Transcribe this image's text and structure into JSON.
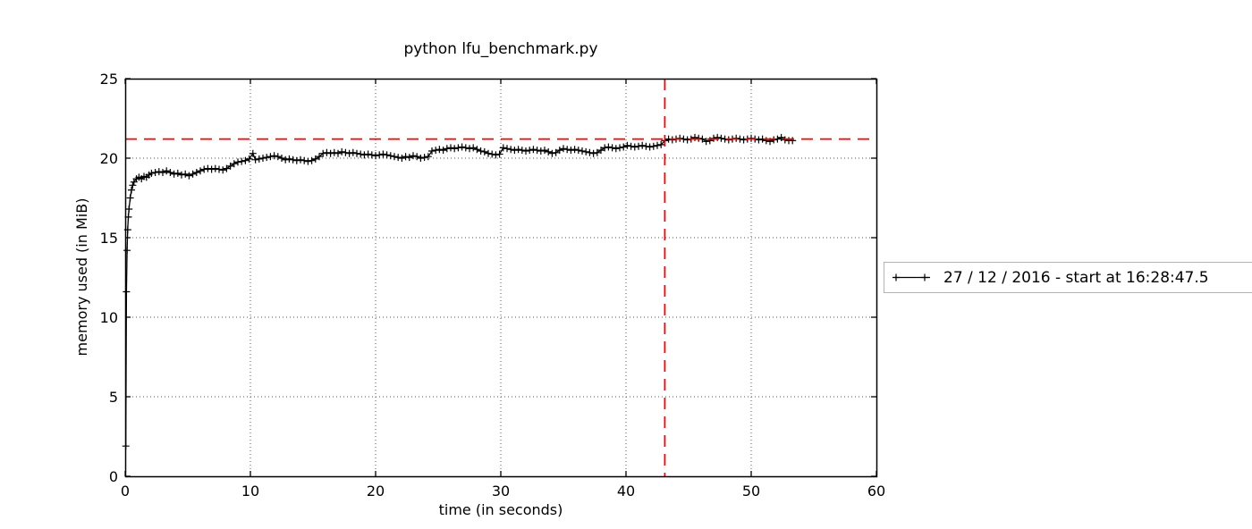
{
  "title": "python lfu_benchmark.py",
  "legend": {
    "label": "27 / 12 / 2016 - start at 16:28:47.5",
    "marker": "plus-line"
  },
  "colors": {
    "series": "#000000",
    "annotation": "#ff0000",
    "grid": "#555555",
    "legend_border": "#b3b3b3",
    "background": "#ffffff"
  },
  "chart_data": {
    "type": "line",
    "title": "python lfu_benchmark.py",
    "xlabel": "time (in seconds)",
    "ylabel": "memory used (in MiB)",
    "xlim": [
      0,
      60
    ],
    "ylim": [
      0,
      25
    ],
    "xticks": [
      0,
      10,
      20,
      30,
      40,
      50,
      60
    ],
    "yticks": [
      0,
      5,
      10,
      15,
      20,
      25
    ],
    "grid": true,
    "grid_style": "dotted",
    "legend_position": "outside-right",
    "marker": "+",
    "annotations": {
      "hline": 21.2,
      "vline": 43.1
    },
    "series": [
      {
        "name": "27 / 12 / 2016 - start at 16:28:47.5",
        "points": [
          [
            0.05,
            1.9
          ],
          [
            0.1,
            11.6
          ],
          [
            0.15,
            14.2
          ],
          [
            0.2,
            15.5
          ],
          [
            0.25,
            16.3
          ],
          [
            0.3,
            16.8
          ],
          [
            0.4,
            17.5
          ],
          [
            0.5,
            18.0
          ],
          [
            0.6,
            18.3
          ],
          [
            0.7,
            18.5
          ],
          [
            0.9,
            18.7
          ],
          [
            1.1,
            18.8
          ],
          [
            1.3,
            18.7
          ],
          [
            1.5,
            18.85
          ],
          [
            1.7,
            18.8
          ],
          [
            1.9,
            18.95
          ],
          [
            2.1,
            19.05
          ],
          [
            2.4,
            19.1
          ],
          [
            2.7,
            19.15
          ],
          [
            3.0,
            19.1
          ],
          [
            3.3,
            19.2
          ],
          [
            3.6,
            19.1
          ],
          [
            3.9,
            19.0
          ],
          [
            4.2,
            19.05
          ],
          [
            4.5,
            18.95
          ],
          [
            4.8,
            19.0
          ],
          [
            5.1,
            18.9
          ],
          [
            5.4,
            19.0
          ],
          [
            5.7,
            19.1
          ],
          [
            6.0,
            19.2
          ],
          [
            6.3,
            19.3
          ],
          [
            6.6,
            19.35
          ],
          [
            6.9,
            19.3
          ],
          [
            7.2,
            19.35
          ],
          [
            7.5,
            19.3
          ],
          [
            7.8,
            19.25
          ],
          [
            8.1,
            19.35
          ],
          [
            8.4,
            19.5
          ],
          [
            8.7,
            19.65
          ],
          [
            9.0,
            19.75
          ],
          [
            9.3,
            19.8
          ],
          [
            9.6,
            19.85
          ],
          [
            9.9,
            19.95
          ],
          [
            10.2,
            20.3
          ],
          [
            10.4,
            19.9
          ],
          [
            10.7,
            19.95
          ],
          [
            11.0,
            20.0
          ],
          [
            11.3,
            20.05
          ],
          [
            11.6,
            20.1
          ],
          [
            11.9,
            20.15
          ],
          [
            12.2,
            20.1
          ],
          [
            12.5,
            20.0
          ],
          [
            12.8,
            19.9
          ],
          [
            13.1,
            19.95
          ],
          [
            13.4,
            19.9
          ],
          [
            13.7,
            19.85
          ],
          [
            14.0,
            19.9
          ],
          [
            14.3,
            19.85
          ],
          [
            14.6,
            19.8
          ],
          [
            14.9,
            19.85
          ],
          [
            15.2,
            19.95
          ],
          [
            15.5,
            20.1
          ],
          [
            15.8,
            20.3
          ],
          [
            16.1,
            20.35
          ],
          [
            16.4,
            20.3
          ],
          [
            16.7,
            20.35
          ],
          [
            17.0,
            20.3
          ],
          [
            17.3,
            20.4
          ],
          [
            17.6,
            20.35
          ],
          [
            17.9,
            20.3
          ],
          [
            18.2,
            20.35
          ],
          [
            18.5,
            20.3
          ],
          [
            18.8,
            20.25
          ],
          [
            19.1,
            20.2
          ],
          [
            19.4,
            20.25
          ],
          [
            19.7,
            20.2
          ],
          [
            20.0,
            20.15
          ],
          [
            20.3,
            20.2
          ],
          [
            20.6,
            20.25
          ],
          [
            20.9,
            20.2
          ],
          [
            21.2,
            20.15
          ],
          [
            21.5,
            20.1
          ],
          [
            21.8,
            20.05
          ],
          [
            22.1,
            20.0
          ],
          [
            22.4,
            20.1
          ],
          [
            22.7,
            20.05
          ],
          [
            23.0,
            20.15
          ],
          [
            23.3,
            20.1
          ],
          [
            23.6,
            20.0
          ],
          [
            23.9,
            20.05
          ],
          [
            24.2,
            20.1
          ],
          [
            24.5,
            20.45
          ],
          [
            24.8,
            20.5
          ],
          [
            25.1,
            20.55
          ],
          [
            25.4,
            20.5
          ],
          [
            25.7,
            20.6
          ],
          [
            26.0,
            20.65
          ],
          [
            26.3,
            20.6
          ],
          [
            26.6,
            20.65
          ],
          [
            26.9,
            20.7
          ],
          [
            27.2,
            20.65
          ],
          [
            27.5,
            20.6
          ],
          [
            27.8,
            20.65
          ],
          [
            28.1,
            20.55
          ],
          [
            28.4,
            20.45
          ],
          [
            28.7,
            20.4
          ],
          [
            29.0,
            20.3
          ],
          [
            29.3,
            20.25
          ],
          [
            29.6,
            20.2
          ],
          [
            29.9,
            20.25
          ],
          [
            30.2,
            20.65
          ],
          [
            30.5,
            20.6
          ],
          [
            30.8,
            20.55
          ],
          [
            31.1,
            20.5
          ],
          [
            31.4,
            20.55
          ],
          [
            31.7,
            20.5
          ],
          [
            32.0,
            20.45
          ],
          [
            32.3,
            20.5
          ],
          [
            32.6,
            20.55
          ],
          [
            32.9,
            20.5
          ],
          [
            33.2,
            20.45
          ],
          [
            33.5,
            20.5
          ],
          [
            33.8,
            20.4
          ],
          [
            34.1,
            20.3
          ],
          [
            34.4,
            20.35
          ],
          [
            34.7,
            20.5
          ],
          [
            35.0,
            20.6
          ],
          [
            35.3,
            20.55
          ],
          [
            35.6,
            20.5
          ],
          [
            35.9,
            20.55
          ],
          [
            36.2,
            20.5
          ],
          [
            36.5,
            20.45
          ],
          [
            36.8,
            20.4
          ],
          [
            37.1,
            20.35
          ],
          [
            37.4,
            20.3
          ],
          [
            37.7,
            20.35
          ],
          [
            38.0,
            20.5
          ],
          [
            38.3,
            20.65
          ],
          [
            38.6,
            20.7
          ],
          [
            38.9,
            20.65
          ],
          [
            39.2,
            20.6
          ],
          [
            39.5,
            20.65
          ],
          [
            39.8,
            20.7
          ],
          [
            40.1,
            20.8
          ],
          [
            40.4,
            20.75
          ],
          [
            40.7,
            20.7
          ],
          [
            41.0,
            20.75
          ],
          [
            41.3,
            20.8
          ],
          [
            41.6,
            20.75
          ],
          [
            41.9,
            20.7
          ],
          [
            42.2,
            20.75
          ],
          [
            42.5,
            20.8
          ],
          [
            42.8,
            20.85
          ],
          [
            43.1,
            21.1
          ],
          [
            43.4,
            21.2
          ],
          [
            43.7,
            21.15
          ],
          [
            44.0,
            21.2
          ],
          [
            44.3,
            21.25
          ],
          [
            44.6,
            21.2
          ],
          [
            44.9,
            21.15
          ],
          [
            45.2,
            21.2
          ],
          [
            45.5,
            21.3
          ],
          [
            45.8,
            21.25
          ],
          [
            46.1,
            21.2
          ],
          [
            46.4,
            21.05
          ],
          [
            46.7,
            21.1
          ],
          [
            47.0,
            21.25
          ],
          [
            47.3,
            21.3
          ],
          [
            47.6,
            21.25
          ],
          [
            47.9,
            21.2
          ],
          [
            48.2,
            21.15
          ],
          [
            48.5,
            21.2
          ],
          [
            48.8,
            21.25
          ],
          [
            49.1,
            21.2
          ],
          [
            49.4,
            21.15
          ],
          [
            49.7,
            21.2
          ],
          [
            50.0,
            21.25
          ],
          [
            50.3,
            21.2
          ],
          [
            50.6,
            21.15
          ],
          [
            50.9,
            21.2
          ],
          [
            51.2,
            21.1
          ],
          [
            51.5,
            21.05
          ],
          [
            51.8,
            21.15
          ],
          [
            52.1,
            21.2
          ],
          [
            52.4,
            21.3
          ],
          [
            52.7,
            21.15
          ],
          [
            53.0,
            21.1
          ],
          [
            53.3,
            21.1
          ]
        ]
      }
    ]
  }
}
